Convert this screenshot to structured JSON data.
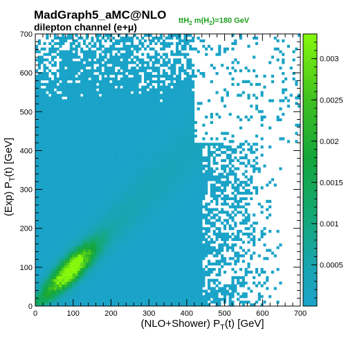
{
  "header": {
    "title": "MadGraph5_aMC@NLO",
    "subtitle": "dilepton channel (e+μ)",
    "annotation": "ttH₂ m(H₂)=180 GeV"
  },
  "chart_data": {
    "type": "heatmap",
    "title": "MadGraph5_aMC@NLO",
    "subtitle": "dilepton channel (e+μ)",
    "annotation": "ttH₂ m(H₂)=180 GeV",
    "xlabel": "(NLO+Shower) P_T(t) [GeV]",
    "ylabel": "(Exp) P_T(t) [GeV]",
    "xlim": [
      0,
      700
    ],
    "ylim": [
      0,
      700
    ],
    "x_ticks": [
      "0",
      "100",
      "200",
      "300",
      "400",
      "500",
      "600",
      "700"
    ],
    "y_ticks": [
      "0",
      "100",
      "200",
      "300",
      "400",
      "500",
      "600",
      "700"
    ],
    "zlim": [
      0,
      0.0033
    ],
    "z_ticks": [
      "0.0005",
      "0.001",
      "0.0015",
      "0.002",
      "0.0025",
      "0.003"
    ],
    "colorscale": [
      "#1aa3c8",
      "#16a58e",
      "#13a85a",
      "#2db82b",
      "#58d018",
      "#7aee0e"
    ],
    "bins": 100,
    "distribution": {
      "peak_x": 95,
      "peak_y": 90,
      "peak_value": 0.0033,
      "correlation": "strong positive along diagonal",
      "sparse_region": "x > 450 GeV and y < 450 GeV, and top-right corner"
    }
  }
}
